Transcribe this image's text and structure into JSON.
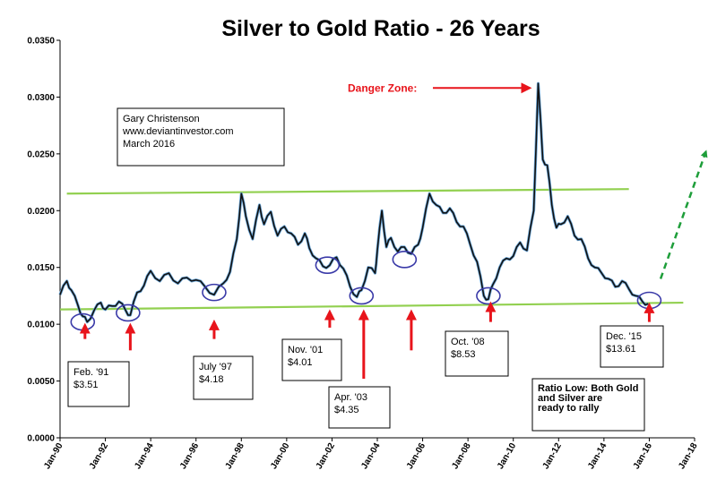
{
  "chart_data": {
    "type": "line",
    "title": "Silver to Gold Ratio - 26 Years",
    "xlabel": "",
    "ylabel": "",
    "ylim": [
      0,
      0.035
    ],
    "xlim": [
      1990,
      2018
    ],
    "y_ticks": [
      "0.0000",
      "0.0050",
      "0.0100",
      "0.0150",
      "0.0200",
      "0.0250",
      "0.0300",
      "0.0350"
    ],
    "x_ticks": [
      "Jan-90",
      "Jan-92",
      "Jan-94",
      "Jan-96",
      "Jan-98",
      "Jan-00",
      "Jan-02",
      "Jan-04",
      "Jan-06",
      "Jan-08",
      "Jan-10",
      "Jan-12",
      "Jan-14",
      "Jan-16",
      "Jan-18"
    ],
    "series": [
      {
        "name": "Silver/Gold ratio",
        "x": [
          1990.0,
          1990.3,
          1990.5,
          1990.8,
          1991.0,
          1991.2,
          1991.5,
          1991.8,
          1992.0,
          1992.3,
          1992.6,
          1992.9,
          1993.1,
          1993.4,
          1993.7,
          1994.0,
          1994.4,
          1994.8,
          1995.2,
          1995.6,
          1996.0,
          1996.4,
          1996.8,
          1997.2,
          1997.5,
          1997.8,
          1998.0,
          1998.2,
          1998.5,
          1998.8,
          1999.0,
          1999.3,
          1999.6,
          1999.9,
          2000.2,
          2000.5,
          2000.8,
          2001.0,
          2001.3,
          2001.6,
          2001.9,
          2002.2,
          2002.5,
          2002.8,
          2003.1,
          2003.3,
          2003.6,
          2003.9,
          2004.0,
          2004.2,
          2004.4,
          2004.6,
          2004.9,
          2005.2,
          2005.5,
          2005.8,
          2006.0,
          2006.3,
          2006.6,
          2006.9,
          2007.2,
          2007.5,
          2007.8,
          2008.1,
          2008.4,
          2008.7,
          2008.9,
          2009.1,
          2009.4,
          2009.7,
          2010.0,
          2010.3,
          2010.6,
          2010.9,
          2011.1,
          2011.3,
          2011.5,
          2011.7,
          2011.9,
          2012.1,
          2012.4,
          2012.7,
          2013.0,
          2013.3,
          2013.6,
          2013.9,
          2014.2,
          2014.5,
          2014.8,
          2015.1,
          2015.4,
          2015.7,
          2015.95
        ],
        "values": [
          0.0126,
          0.0138,
          0.013,
          0.0116,
          0.0107,
          0.0102,
          0.0112,
          0.0119,
          0.0113,
          0.0116,
          0.012,
          0.0112,
          0.0108,
          0.0128,
          0.0134,
          0.0147,
          0.0138,
          0.0145,
          0.0136,
          0.0141,
          0.0139,
          0.0133,
          0.0126,
          0.0136,
          0.0146,
          0.0175,
          0.0215,
          0.0195,
          0.0175,
          0.0205,
          0.0188,
          0.0199,
          0.0178,
          0.0186,
          0.018,
          0.017,
          0.018,
          0.0167,
          0.0158,
          0.0151,
          0.0152,
          0.0159,
          0.0149,
          0.0133,
          0.0124,
          0.013,
          0.015,
          0.0145,
          0.0165,
          0.02,
          0.0168,
          0.0176,
          0.0164,
          0.0168,
          0.0162,
          0.017,
          0.0185,
          0.0215,
          0.0205,
          0.0198,
          0.0202,
          0.019,
          0.0186,
          0.017,
          0.0155,
          0.0125,
          0.0122,
          0.0135,
          0.015,
          0.0158,
          0.016,
          0.0172,
          0.0165,
          0.02,
          0.0312,
          0.0245,
          0.024,
          0.0205,
          0.0185,
          0.0188,
          0.0195,
          0.0178,
          0.0175,
          0.0158,
          0.015,
          0.0145,
          0.014,
          0.0133,
          0.0138,
          0.0131,
          0.0125,
          0.012,
          0.0118
        ]
      }
    ],
    "trend_lines": [
      {
        "name": "upper-trend-line",
        "x": [
          1990.3,
          2015.1
        ],
        "y": [
          0.0215,
          0.0219
        ]
      },
      {
        "name": "lower-trend-line",
        "x": [
          1990.0,
          2017.5
        ],
        "y": [
          0.0113,
          0.0119
        ]
      }
    ],
    "projection": {
      "x": [
        2016.5,
        2018.5
      ],
      "y": [
        0.014,
        0.0252
      ]
    },
    "highlights": [
      {
        "x": 1991.0,
        "y": 0.0102
      },
      {
        "x": 1993.0,
        "y": 0.011
      },
      {
        "x": 1996.8,
        "y": 0.0128
      },
      {
        "x": 2001.8,
        "y": 0.0152
      },
      {
        "x": 2003.3,
        "y": 0.0125
      },
      {
        "x": 2005.2,
        "y": 0.0157
      },
      {
        "x": 2008.9,
        "y": 0.0125
      },
      {
        "x": 2016.0,
        "y": 0.0121
      }
    ],
    "arrows": [
      {
        "x": 1991.1,
        "y_from": 0.0087,
        "y_to": 0.0098
      },
      {
        "x": 1993.1,
        "y_from": 0.0077,
        "y_to": 0.0098
      },
      {
        "x": 1996.8,
        "y_from": 0.0087,
        "y_to": 0.0101
      },
      {
        "x": 2001.9,
        "y_from": 0.0097,
        "y_to": 0.011
      },
      {
        "x": 2003.4,
        "y_from": 0.0052,
        "y_to": 0.011
      },
      {
        "x": 2005.5,
        "y_from": 0.0077,
        "y_to": 0.011
      },
      {
        "x": 2009.0,
        "y_from": 0.0102,
        "y_to": 0.0117
      },
      {
        "x": 2016.0,
        "y_from": 0.0102,
        "y_to": 0.0116
      }
    ],
    "danger_zone": {
      "label": "Danger Zone:",
      "arrow_to_x": 2010.9,
      "arrow_y": 0.0308
    },
    "annotations": [
      {
        "name": "author",
        "lines": [
          "Gary Christenson",
          "www.deviantinvestor.com",
          "March 2016"
        ]
      },
      {
        "name": "feb-91",
        "lines": [
          "Feb. '91",
          "$3.51"
        ]
      },
      {
        "name": "july-97",
        "lines": [
          "July '97",
          "$4.18"
        ]
      },
      {
        "name": "nov-01",
        "lines": [
          "Nov. '01",
          "$4.01"
        ]
      },
      {
        "name": "apr-03",
        "lines": [
          "Apr. '03",
          "$4.35"
        ]
      },
      {
        "name": "oct-08",
        "lines": [
          "Oct. '08",
          "$8.53"
        ]
      },
      {
        "name": "dec-15",
        "lines": [
          "Dec. '15",
          "$13.61"
        ]
      },
      {
        "name": "ratio-low",
        "lines": [
          "Ratio Low: Both Gold",
          "and Silver  are",
          "ready to rally"
        ]
      }
    ]
  }
}
